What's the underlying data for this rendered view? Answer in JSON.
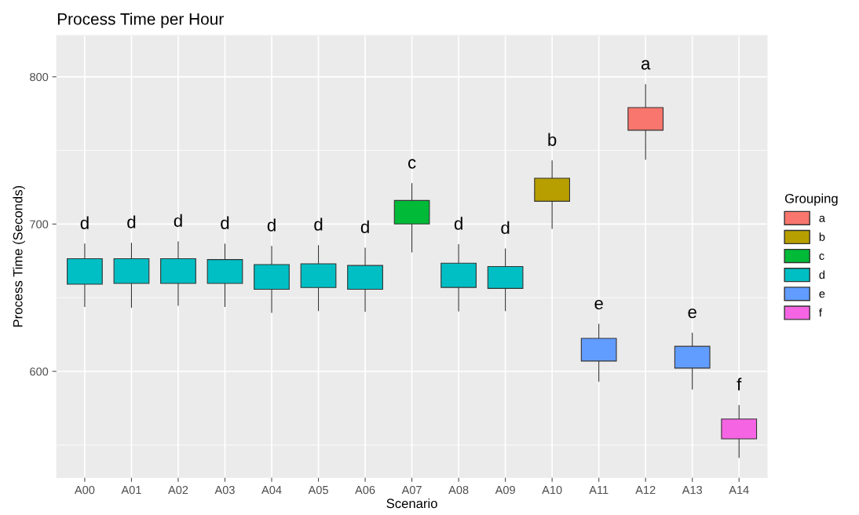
{
  "chart_data": {
    "type": "box",
    "title": "Process Time per Hour",
    "xlabel": "Scenario",
    "ylabel": "Process Time (Seconds)",
    "legend_title": "Grouping",
    "categories": [
      "A00",
      "A01",
      "A02",
      "A03",
      "A04",
      "A05",
      "A06",
      "A07",
      "A08",
      "A09",
      "A10",
      "A11",
      "A12",
      "A13",
      "A14"
    ],
    "ylim": [
      528,
      828
    ],
    "yticks": [
      600,
      700,
      800
    ],
    "grid": true,
    "legend": "right",
    "series": [
      {
        "name": "a",
        "color": "#f8766d",
        "boxes": [
          null,
          null,
          null,
          null,
          null,
          null,
          null,
          null,
          null,
          null,
          null,
          null,
          {
            "low": 743.9,
            "q1": 763.7,
            "median": 772.3,
            "q3": 779.1,
            "high": 794.7
          },
          null,
          null
        ]
      },
      {
        "name": "b",
        "color": "#b79f00",
        "boxes": [
          null,
          null,
          null,
          null,
          null,
          null,
          null,
          null,
          null,
          null,
          {
            "low": 697,
            "q1": 715.5,
            "median": 720.6,
            "q3": 731.1,
            "high": 742.9
          },
          null,
          null,
          null,
          null
        ]
      },
      {
        "name": "c",
        "color": "#00ba38",
        "boxes": [
          null,
          null,
          null,
          null,
          null,
          null,
          null,
          {
            "low": 681,
            "q1": 700.1,
            "median": 706.7,
            "q3": 716,
            "high": 727.5
          },
          null,
          null,
          null,
          null,
          null,
          null,
          null
        ]
      },
      {
        "name": "d",
        "color": "#00bfc4",
        "boxes": [
          {
            "low": 644,
            "q1": 659.2,
            "median": 666.4,
            "q3": 676.5,
            "high": 686.4
          },
          {
            "low": 643.5,
            "q1": 659.7,
            "median": 667.3,
            "q3": 676.5,
            "high": 687
          },
          {
            "low": 644.8,
            "q1": 659.7,
            "median": 667.7,
            "q3": 676.5,
            "high": 687.9
          },
          {
            "low": 644,
            "q1": 659.7,
            "median": 667.3,
            "q3": 675.9,
            "high": 686.4
          },
          {
            "low": 640,
            "q1": 655.7,
            "median": 662.9,
            "q3": 672.5,
            "high": 684.9
          },
          {
            "low": 641.2,
            "q1": 656.9,
            "median": 664.1,
            "q3": 673,
            "high": 685.4
          },
          {
            "low": 640.7,
            "q1": 655.7,
            "median": 663.5,
            "q3": 671.9,
            "high": 683.7
          },
          null,
          {
            "low": 640.9,
            "q1": 657,
            "median": 664.6,
            "q3": 673.4,
            "high": 686
          },
          {
            "low": 641.2,
            "q1": 656.3,
            "median": 662.9,
            "q3": 671.2,
            "high": 683.1
          },
          null,
          null,
          null,
          null,
          null
        ]
      },
      {
        "name": "e",
        "color": "#619cff",
        "boxes": [
          null,
          null,
          null,
          null,
          null,
          null,
          null,
          null,
          null,
          null,
          null,
          {
            "low": 593.2,
            "q1": 607,
            "median": 614.4,
            "q3": 622.4,
            "high": 631.9
          },
          null,
          {
            "low": 587.9,
            "q1": 602.2,
            "median": 607.9,
            "q3": 617,
            "high": 626
          },
          null
        ]
      },
      {
        "name": "f",
        "color": "#f564e3",
        "boxes": [
          null,
          null,
          null,
          null,
          null,
          null,
          null,
          null,
          null,
          null,
          null,
          null,
          null,
          null,
          {
            "low": 541.6,
            "q1": 554.2,
            "median": 560.3,
            "q3": 567.6,
            "high": 576.8
          }
        ]
      }
    ],
    "annotations": [
      "d",
      "d",
      "d",
      "d",
      "d",
      "d",
      "d",
      "c",
      "d",
      "d",
      "b",
      "e",
      "a",
      "e",
      "f"
    ]
  }
}
